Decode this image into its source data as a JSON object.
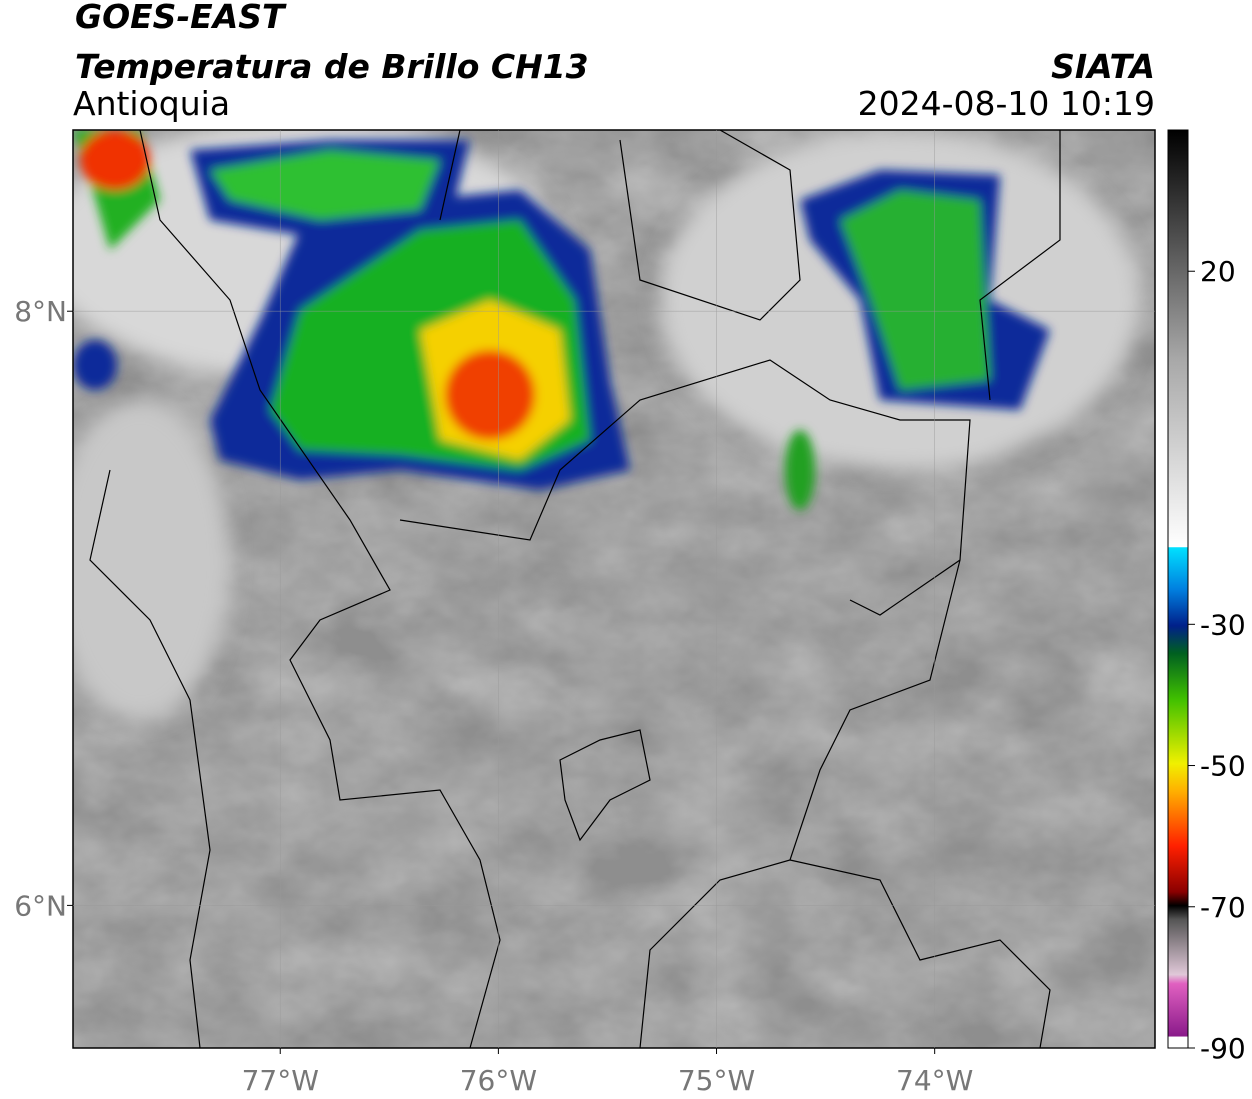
{
  "header": {
    "satellite": "GOES-EAST",
    "product": "Temperatura de Brillo CH13",
    "region": "Antioquia",
    "source": "SIATA",
    "datetime": "2024-08-10 10:19"
  },
  "map": {
    "xlim": [
      -77.95,
      -72.99
    ],
    "ylim": [
      5.52,
      8.61
    ],
    "xticks": [
      {
        "value": -77,
        "label": "77°W"
      },
      {
        "value": -76,
        "label": "76°W"
      },
      {
        "value": -75,
        "label": "75°W"
      },
      {
        "value": -74,
        "label": "74°W"
      }
    ],
    "yticks": [
      {
        "value": 8,
        "label": "8°N"
      },
      {
        "value": 6,
        "label": "6°N"
      }
    ],
    "grid": true
  },
  "colorbar": {
    "range": [
      -90,
      40
    ],
    "ticks": [
      20,
      -30,
      -50,
      -70,
      -90
    ]
  }
}
